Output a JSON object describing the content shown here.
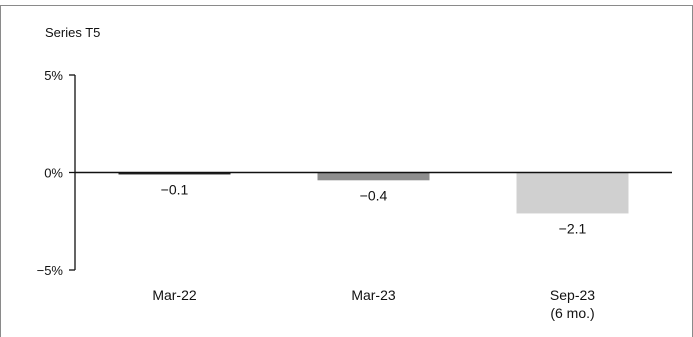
{
  "chart_data": {
    "type": "bar",
    "title": "Series T5",
    "categories": [
      "Mar-22",
      "Mar-23",
      "Sep-23"
    ],
    "category_sublabels": [
      "",
      "",
      "(6 mo.)"
    ],
    "values": [
      -0.1,
      -0.4,
      -2.1
    ],
    "value_labels": [
      "−0.1",
      "−0.4",
      "−2.1"
    ],
    "ylim": [
      -5,
      5
    ],
    "yticks": [
      5,
      0,
      -5
    ],
    "ytick_labels": [
      "5%",
      "0%",
      "−5%"
    ],
    "bar_colors": [
      "#222222",
      "#8e8e8e",
      "#d0d0d0"
    ],
    "grid": false,
    "xlabel": "",
    "ylabel": ""
  }
}
